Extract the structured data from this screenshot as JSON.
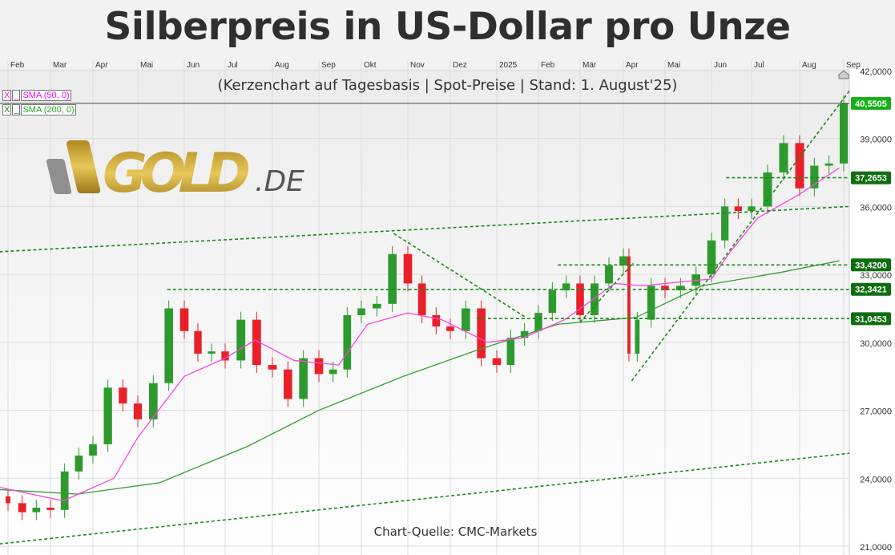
{
  "title": "Silberpreis in US-Dollar pro Unze",
  "subtitle": "(Kerzenchart auf Tagesbasis | Spot-Preise | Stand: 1. August'25)",
  "source": "Chart-Quelle: CMC-Markets",
  "logo": {
    "text": "GOLD.DE"
  },
  "legend": [
    {
      "check": "X",
      "line": "_",
      "label": "SMA (50, 0)",
      "color": "#ff00ff"
    },
    {
      "check": "X",
      "line": "_",
      "label": "SMA (200, 0)",
      "color": "#22aa22"
    }
  ],
  "chart_data": {
    "type": "candlestick",
    "title": "Silberpreis in US-Dollar pro Unze",
    "ylim": [
      21,
      42
    ],
    "yticks": [
      "42,0000",
      "39,0000",
      "36,0000",
      "33,0000",
      "30,0000",
      "27,0000",
      "24,0000",
      "21,0000"
    ],
    "ytick_values": [
      42,
      39,
      36,
      33,
      30,
      27,
      24,
      21
    ],
    "xticks": [
      "Feb",
      "Mar",
      "Apr",
      "Mai",
      "Jun",
      "Jul",
      "Aug",
      "Sep",
      "Okt",
      "Nov",
      "Dez",
      "2025",
      "Feb",
      "Mär",
      "Apr",
      "Mai",
      "Jun",
      "Jul",
      "Aug",
      "Sep"
    ],
    "grid": true,
    "colors": {
      "up": "#2e9a2e",
      "down": "#e8202a",
      "sma50": "#ff44dd",
      "sma200": "#33a033",
      "trend": "#1a8a1a",
      "label_bg": "#0f6e0f",
      "last_bg": "#16b016"
    },
    "closes": [
      [
        "2024-01-25",
        23.2
      ],
      [
        "2024-02-01",
        22.9
      ],
      [
        "2024-02-11",
        22.5
      ],
      [
        "2024-02-21",
        22.7
      ],
      [
        "2024-03-01",
        22.6
      ],
      [
        "2024-03-11",
        24.3
      ],
      [
        "2024-03-21",
        25.0
      ],
      [
        "2024-04-01",
        25.5
      ],
      [
        "2024-04-11",
        28.0
      ],
      [
        "2024-04-21",
        27.3
      ],
      [
        "2024-05-01",
        26.6
      ],
      [
        "2024-05-11",
        28.2
      ],
      [
        "2024-05-21",
        31.5
      ],
      [
        "2024-06-01",
        30.5
      ],
      [
        "2024-06-11",
        29.5
      ],
      [
        "2024-06-21",
        29.6
      ],
      [
        "2024-07-01",
        29.2
      ],
      [
        "2024-07-11",
        31.0
      ],
      [
        "2024-07-21",
        29.0
      ],
      [
        "2024-08-01",
        28.8
      ],
      [
        "2024-08-11",
        27.5
      ],
      [
        "2024-08-21",
        29.3
      ],
      [
        "2024-09-01",
        28.6
      ],
      [
        "2024-09-11",
        28.8
      ],
      [
        "2024-09-21",
        31.2
      ],
      [
        "2024-10-01",
        31.5
      ],
      [
        "2024-10-11",
        31.7
      ],
      [
        "2024-10-21",
        33.9
      ],
      [
        "2024-11-01",
        32.6
      ],
      [
        "2024-11-11",
        31.2
      ],
      [
        "2024-11-21",
        30.7
      ],
      [
        "2024-12-01",
        30.5
      ],
      [
        "2024-12-11",
        31.5
      ],
      [
        "2024-12-21",
        29.3
      ],
      [
        "2025-01-01",
        29.0
      ],
      [
        "2025-01-11",
        30.2
      ],
      [
        "2025-01-21",
        30.5
      ],
      [
        "2025-02-01",
        31.3
      ],
      [
        "2025-02-11",
        32.3
      ],
      [
        "2025-02-21",
        32.6
      ],
      [
        "2025-03-01",
        31.2
      ],
      [
        "2025-03-11",
        32.6
      ],
      [
        "2025-03-21",
        33.4
      ],
      [
        "2025-04-01",
        33.8
      ],
      [
        "2025-04-05",
        29.5
      ],
      [
        "2025-04-11",
        31.0
      ],
      [
        "2025-04-21",
        32.5
      ],
      [
        "2025-05-01",
        32.3
      ],
      [
        "2025-05-11",
        32.5
      ],
      [
        "2025-05-21",
        33.0
      ],
      [
        "2025-06-01",
        34.5
      ],
      [
        "2025-06-11",
        36.0
      ],
      [
        "2025-06-21",
        35.8
      ],
      [
        "2025-07-01",
        36.0
      ],
      [
        "2025-07-11",
        37.5
      ],
      [
        "2025-07-21",
        38.8
      ],
      [
        "2025-08-01",
        36.8
      ],
      [
        "2025-08-11",
        37.8
      ],
      [
        "2025-08-21",
        37.9
      ],
      [
        "2025-09-01",
        40.55
      ]
    ],
    "sma200": [
      [
        "2024-01-25",
        23.5
      ],
      [
        "2024-03-20",
        23.3
      ],
      [
        "2024-05-15",
        23.8
      ],
      [
        "2024-07-15",
        25.4
      ],
      [
        "2024-09-01",
        27.0
      ],
      [
        "2024-10-28",
        28.5
      ],
      [
        "2024-12-20",
        29.7
      ],
      [
        "2025-02-15",
        30.8
      ],
      [
        "2025-04-10",
        31.1
      ],
      [
        "2025-05-25",
        32.5
      ],
      [
        "2025-07-20",
        33.1
      ],
      [
        "2025-08-28",
        33.6
      ]
    ],
    "sma50": [
      [
        "2024-01-25",
        23.6
      ],
      [
        "2024-03-10",
        23.0
      ],
      [
        "2024-04-15",
        24.0
      ],
      [
        "2024-05-01",
        25.8
      ],
      [
        "2024-06-01",
        28.5
      ],
      [
        "2024-07-01",
        29.3
      ],
      [
        "2024-07-20",
        30.1
      ],
      [
        "2024-08-15",
        29.2
      ],
      [
        "2024-09-15",
        29.0
      ],
      [
        "2024-10-05",
        30.8
      ],
      [
        "2024-11-01",
        31.3
      ],
      [
        "2024-11-25",
        31.0
      ],
      [
        "2024-12-25",
        30.0
      ],
      [
        "2025-01-20",
        30.2
      ],
      [
        "2025-02-20",
        31.0
      ],
      [
        "2025-03-25",
        32.6
      ],
      [
        "2025-04-15",
        32.5
      ],
      [
        "2025-06-01",
        32.8
      ],
      [
        "2025-06-15",
        34.0
      ],
      [
        "2025-07-05",
        35.5
      ],
      [
        "2025-07-30",
        36.5
      ],
      [
        "2025-08-28",
        37.7
      ]
    ],
    "trendlines": [
      [
        [
          "2024-01-25",
          21.1
        ],
        [
          "2025-09-05",
          25.1
        ]
      ],
      [
        [
          "2024-01-25",
          34.0
        ],
        [
          "2025-09-05",
          36.0
        ]
      ],
      [
        [
          "2024-05-20",
          32.34
        ],
        [
          "2025-09-05",
          32.34
        ]
      ],
      [
        [
          "2025-06-12",
          37.27
        ],
        [
          "2025-09-05",
          37.27
        ]
      ],
      [
        [
          "2025-02-15",
          33.42
        ],
        [
          "2025-09-05",
          33.42
        ]
      ],
      [
        [
          "2024-12-18",
          31.05
        ],
        [
          "2025-09-05",
          31.05
        ]
      ],
      [
        [
          "2024-10-22",
          34.8
        ],
        [
          "2025-01-22",
          31.1
        ]
      ],
      [
        [
          "2025-04-07",
          28.3
        ],
        [
          "2025-09-05",
          41.1
        ]
      ],
      [
        [
          "2025-03-01",
          30.9
        ],
        [
          "2025-04-08",
          33.5
        ]
      ]
    ],
    "price_labels": [
      {
        "value": 40.5505,
        "text": "40,5505",
        "last": true
      },
      {
        "value": 37.2653,
        "text": "37,2653"
      },
      {
        "value": 33.42,
        "text": "33,4200"
      },
      {
        "value": 32.3421,
        "text": "32,3421"
      },
      {
        "value": 31.0453,
        "text": "31,0453"
      }
    ]
  }
}
